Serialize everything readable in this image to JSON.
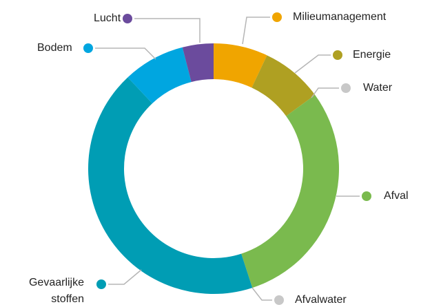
{
  "chart_data": {
    "type": "donut",
    "categories": [
      "Milieumanagement",
      "Energie",
      "Water",
      "Afval",
      "Afvalwater",
      "Gevaarlijke stoffen",
      "Bodem",
      "Lucht"
    ],
    "values": [
      7,
      8,
      0,
      30,
      0,
      43,
      8,
      4
    ],
    "colors": [
      "#f0a500",
      "#afa022",
      "#c8c8c8",
      "#7aba4e",
      "#c8c8c8",
      "#009db4",
      "#00a6e0",
      "#6b4b9d"
    ]
  }
}
